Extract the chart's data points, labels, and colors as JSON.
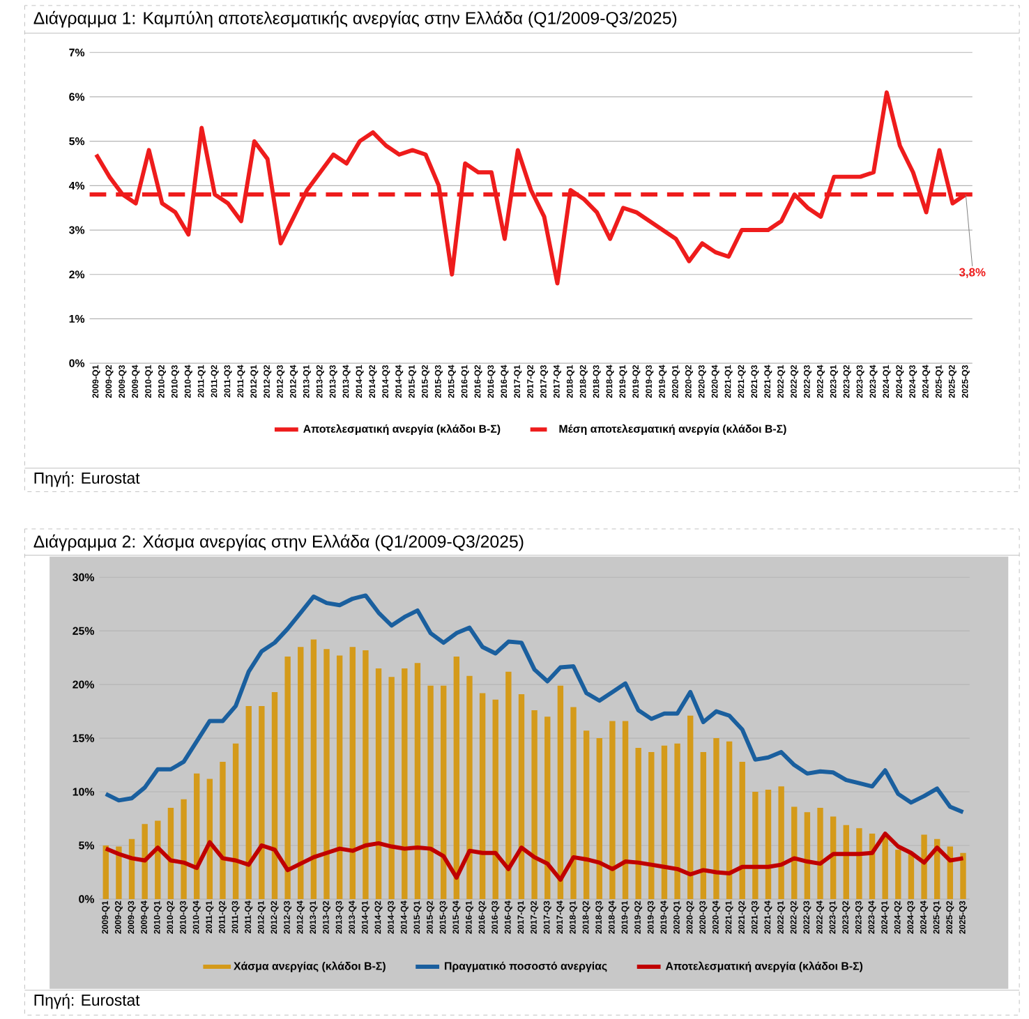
{
  "chart_data": [
    {
      "type": "line",
      "title": "Διάγραμμα 1: Καμπύλη αποτελεσματικής ανεργίας στην Ελλάδα (Q1/2009-Q3/2025)",
      "categories": [
        "2009-Q1",
        "2009-Q2",
        "2009-Q3",
        "2009-Q4",
        "2010-Q1",
        "2010-Q2",
        "2010-Q3",
        "2010-Q4",
        "2011-Q1",
        "2011-Q2",
        "2011-Q3",
        "2011-Q4",
        "2012-Q1",
        "2012-Q2",
        "2012-Q3",
        "2012-Q4",
        "2013-Q1",
        "2013-Q2",
        "2013-Q3",
        "2013-Q4",
        "2014-Q1",
        "2014-Q2",
        "2014-Q3",
        "2014-Q4",
        "2015-Q1",
        "2015-Q2",
        "2015-Q3",
        "2015-Q4",
        "2016-Q1",
        "2016-Q2",
        "2016-Q3",
        "2016-Q4",
        "2017-Q1",
        "2017-Q2",
        "2017-Q3",
        "2017-Q4",
        "2018-Q1",
        "2018-Q2",
        "2018-Q3",
        "2018-Q4",
        "2019-Q1",
        "2019-Q2",
        "2019-Q3",
        "2019-Q4",
        "2020-Q1",
        "2020-Q2",
        "2020-Q3",
        "2020-Q4",
        "2021-Q1",
        "2021-Q2",
        "2021-Q3",
        "2021-Q4",
        "2022-Q1",
        "2022-Q2",
        "2022-Q3",
        "2022-Q4",
        "2023-Q1",
        "2023-Q2",
        "2023-Q3",
        "2023-Q4",
        "2024-Q1",
        "2024-Q2",
        "2024-Q3",
        "2024-Q4",
        "2025-Q1",
        "2025-Q2",
        "2025-Q3"
      ],
      "series": [
        {
          "name": "Αποτελεσματική ανεργία (κλάδοι Β-Σ)",
          "color": "#ee1c1c",
          "values": [
            4.7,
            4.2,
            3.8,
            3.6,
            4.8,
            3.6,
            3.4,
            2.9,
            5.3,
            3.8,
            3.6,
            3.2,
            5.0,
            4.6,
            2.7,
            3.3,
            3.9,
            4.3,
            4.7,
            4.5,
            5.0,
            5.2,
            4.9,
            4.7,
            4.8,
            4.7,
            4.0,
            2.0,
            4.5,
            4.3,
            4.3,
            2.8,
            4.8,
            3.9,
            3.3,
            1.8,
            3.9,
            3.7,
            3.4,
            2.8,
            3.5,
            3.4,
            3.2,
            3.0,
            2.8,
            2.3,
            2.7,
            2.5,
            2.4,
            3.0,
            3.0,
            3.0,
            3.2,
            3.8,
            3.5,
            3.3,
            4.2,
            4.2,
            4.2,
            4.3,
            6.1,
            4.9,
            4.3,
            3.4,
            4.8,
            3.6,
            3.8
          ]
        }
      ],
      "ref_lines": [
        {
          "axis": "y",
          "value": 3.8,
          "label": "Μέση αποτελεσματική ανεργία (κλάδοι Β-Σ)",
          "color": "#ee1c1c",
          "line_style": "dashed"
        }
      ],
      "ylim": [
        0,
        7
      ],
      "yticks": [
        {
          "value": 0,
          "label": "0%"
        },
        {
          "value": 1,
          "label": "1%"
        },
        {
          "value": 2,
          "label": "2%"
        },
        {
          "value": 3,
          "label": "3%"
        },
        {
          "value": 4,
          "label": "4%"
        },
        {
          "value": 5,
          "label": "5%"
        },
        {
          "value": 6,
          "label": "6%"
        },
        {
          "value": 7,
          "label": "7%"
        }
      ],
      "grid": "y",
      "legend": "bottom",
      "annotations": [
        {
          "text": "3,8%",
          "x": "2025-Q3",
          "y": 3.8
        },
        "Πηγή: Eurostat"
      ]
    },
    {
      "type": "bar",
      "title": "Διάγραμμα 2: Χάσμα ανεργίας στην Ελλάδα (Q1/2009-Q3/2025)",
      "categories": [
        "2009-Q1",
        "2009-Q2",
        "2009-Q3",
        "2009-Q4",
        "2010-Q1",
        "2010-Q2",
        "2010-Q3",
        "2010-Q4",
        "2011-Q1",
        "2011-Q2",
        "2011-Q3",
        "2011-Q4",
        "2012-Q1",
        "2012-Q2",
        "2012-Q3",
        "2012-Q4",
        "2013-Q1",
        "2013-Q2",
        "2013-Q3",
        "2013-Q4",
        "2014-Q1",
        "2014-Q2",
        "2014-Q3",
        "2014-Q4",
        "2015-Q1",
        "2015-Q2",
        "2015-Q3",
        "2015-Q4",
        "2016-Q1",
        "2016-Q2",
        "2016-Q3",
        "2016-Q4",
        "2017-Q1",
        "2017-Q2",
        "2017-Q3",
        "2017-Q4",
        "2018-Q1",
        "2018-Q2",
        "2018-Q3",
        "2018-Q4",
        "2019-Q1",
        "2019-Q2",
        "2019-Q3",
        "2019-Q4",
        "2020-Q1",
        "2020-Q2",
        "2020-Q3",
        "2020-Q4",
        "2021-Q1",
        "2021-Q2",
        "2021-Q3",
        "2021-Q4",
        "2022-Q1",
        "2022-Q2",
        "2022-Q3",
        "2022-Q4",
        "2023-Q1",
        "2023-Q2",
        "2023-Q3",
        "2023-Q4",
        "2024-Q1",
        "2024-Q2",
        "2024-Q3",
        "2024-Q4",
        "2025-Q1",
        "2025-Q2",
        "2025-Q3"
      ],
      "series": [
        {
          "name": "Χάσμα ανεργίας (κλάδοι Β-Σ)",
          "type": "bar",
          "color": "#d49a1a",
          "values": [
            5.0,
            4.9,
            5.6,
            7.0,
            7.3,
            8.5,
            9.3,
            11.7,
            11.2,
            12.8,
            14.5,
            18.0,
            18.0,
            19.3,
            22.6,
            23.5,
            24.2,
            23.3,
            22.7,
            23.5,
            23.2,
            21.5,
            20.7,
            21.5,
            22.0,
            19.9,
            19.9,
            22.6,
            20.8,
            19.2,
            18.6,
            21.2,
            19.1,
            17.6,
            17.0,
            19.9,
            17.9,
            15.7,
            15.0,
            16.6,
            16.6,
            14.1,
            13.7,
            14.3,
            14.5,
            17.1,
            13.7,
            15.0,
            14.7,
            12.8,
            10.0,
            10.2,
            10.5,
            8.6,
            8.1,
            8.5,
            7.7,
            6.9,
            6.6,
            6.1,
            5.9,
            4.6,
            4.2,
            6.0,
            5.6,
            4.9,
            4.3
          ]
        },
        {
          "name": "Πραγματικό ποσοστό ανεργίας",
          "type": "line",
          "color": "#1a5f9e",
          "values": [
            9.8,
            9.2,
            9.4,
            10.4,
            12.1,
            12.1,
            12.8,
            14.7,
            16.6,
            16.6,
            18.0,
            21.2,
            23.1,
            23.9,
            25.2,
            26.7,
            28.2,
            27.6,
            27.4,
            28.0,
            28.3,
            26.7,
            25.5,
            26.3,
            26.9,
            24.8,
            23.9,
            24.8,
            25.3,
            23.5,
            22.9,
            24.0,
            23.9,
            21.4,
            20.3,
            21.6,
            21.7,
            19.2,
            18.5,
            19.3,
            20.1,
            17.6,
            16.8,
            17.3,
            17.3,
            19.3,
            16.5,
            17.5,
            17.1,
            15.8,
            13.0,
            13.2,
            13.7,
            12.5,
            11.7,
            11.9,
            11.8,
            11.1,
            10.8,
            10.5,
            12.0,
            9.8,
            9.0,
            9.6,
            10.3,
            8.6,
            8.1
          ]
        },
        {
          "name": "Αποτελεσματική ανεργία (κλάδοι Β-Σ)",
          "type": "line",
          "color": "#c00000",
          "values": [
            4.7,
            4.2,
            3.8,
            3.6,
            4.8,
            3.6,
            3.4,
            2.9,
            5.3,
            3.8,
            3.6,
            3.2,
            5.0,
            4.6,
            2.7,
            3.3,
            3.9,
            4.3,
            4.7,
            4.5,
            5.0,
            5.2,
            4.9,
            4.7,
            4.8,
            4.7,
            4.0,
            2.0,
            4.5,
            4.3,
            4.3,
            2.8,
            4.8,
            3.9,
            3.3,
            1.8,
            3.9,
            3.7,
            3.4,
            2.8,
            3.5,
            3.4,
            3.2,
            3.0,
            2.8,
            2.3,
            2.7,
            2.5,
            2.4,
            3.0,
            3.0,
            3.0,
            3.2,
            3.8,
            3.5,
            3.3,
            4.2,
            4.2,
            4.2,
            4.3,
            6.1,
            4.9,
            4.3,
            3.4,
            4.8,
            3.6,
            3.8
          ]
        }
      ],
      "ylim": [
        0,
        30
      ],
      "yticks": [
        {
          "value": 0,
          "label": "0%"
        },
        {
          "value": 5,
          "label": "5%"
        },
        {
          "value": 10,
          "label": "10%"
        },
        {
          "value": 15,
          "label": "15%"
        },
        {
          "value": 20,
          "label": "20%"
        },
        {
          "value": 25,
          "label": "25%"
        },
        {
          "value": 30,
          "label": "30%"
        }
      ],
      "grid": "y",
      "legend": "bottom",
      "annotations": [
        "Πηγή: Eurostat"
      ]
    }
  ]
}
